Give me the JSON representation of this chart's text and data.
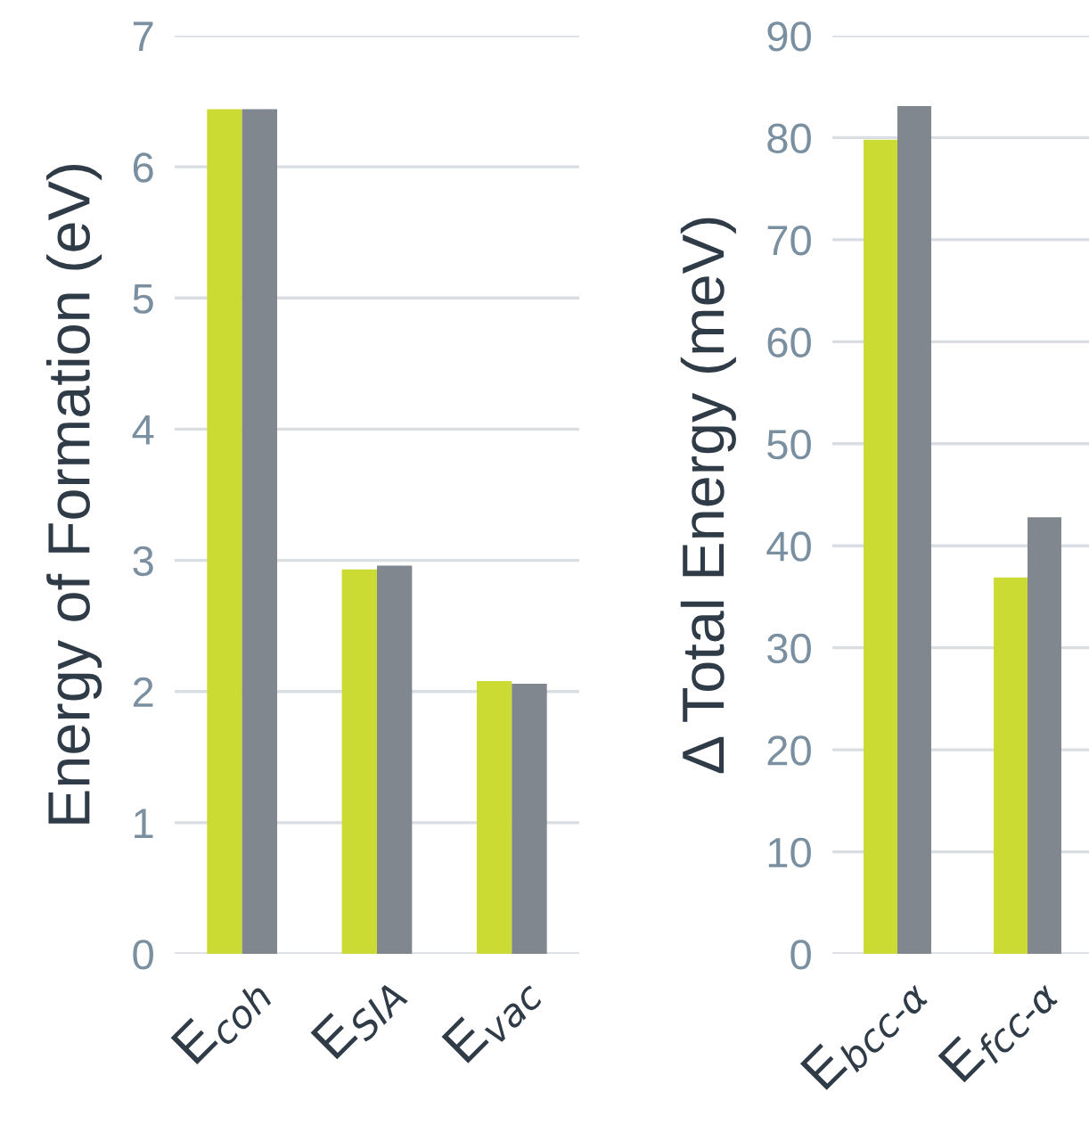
{
  "chart_data": [
    {
      "type": "bar",
      "ylabel": "Energy of Formation (eV)",
      "categories": [
        "E$_{coh}$",
        "E$_{SIA}$",
        "E$_{vac}$"
      ],
      "series": [
        {
          "color": "#cbdb34",
          "values": [
            6.44,
            2.93,
            2.08
          ]
        },
        {
          "color": "#80878e",
          "values": [
            6.44,
            2.96,
            2.06
          ]
        }
      ],
      "ylim": [
        0,
        7
      ],
      "yticks": [
        0,
        1,
        2,
        3,
        4,
        5,
        6,
        7
      ],
      "grid": "y"
    },
    {
      "type": "bar",
      "ylabel": "Δ Total Energy (meV)",
      "categories": [
        "E$_{bcc‐α}$",
        "E$_{fcc‐α}$"
      ],
      "series": [
        {
          "color": "#cbdb34",
          "values": [
            79.8,
            36.9
          ]
        },
        {
          "color": "#80878e",
          "values": [
            83.1,
            42.8
          ]
        }
      ],
      "ylim": [
        0,
        90
      ],
      "yticks": [
        0,
        10,
        20,
        30,
        40,
        50,
        60,
        70,
        80,
        90
      ],
      "grid": "y"
    }
  ]
}
